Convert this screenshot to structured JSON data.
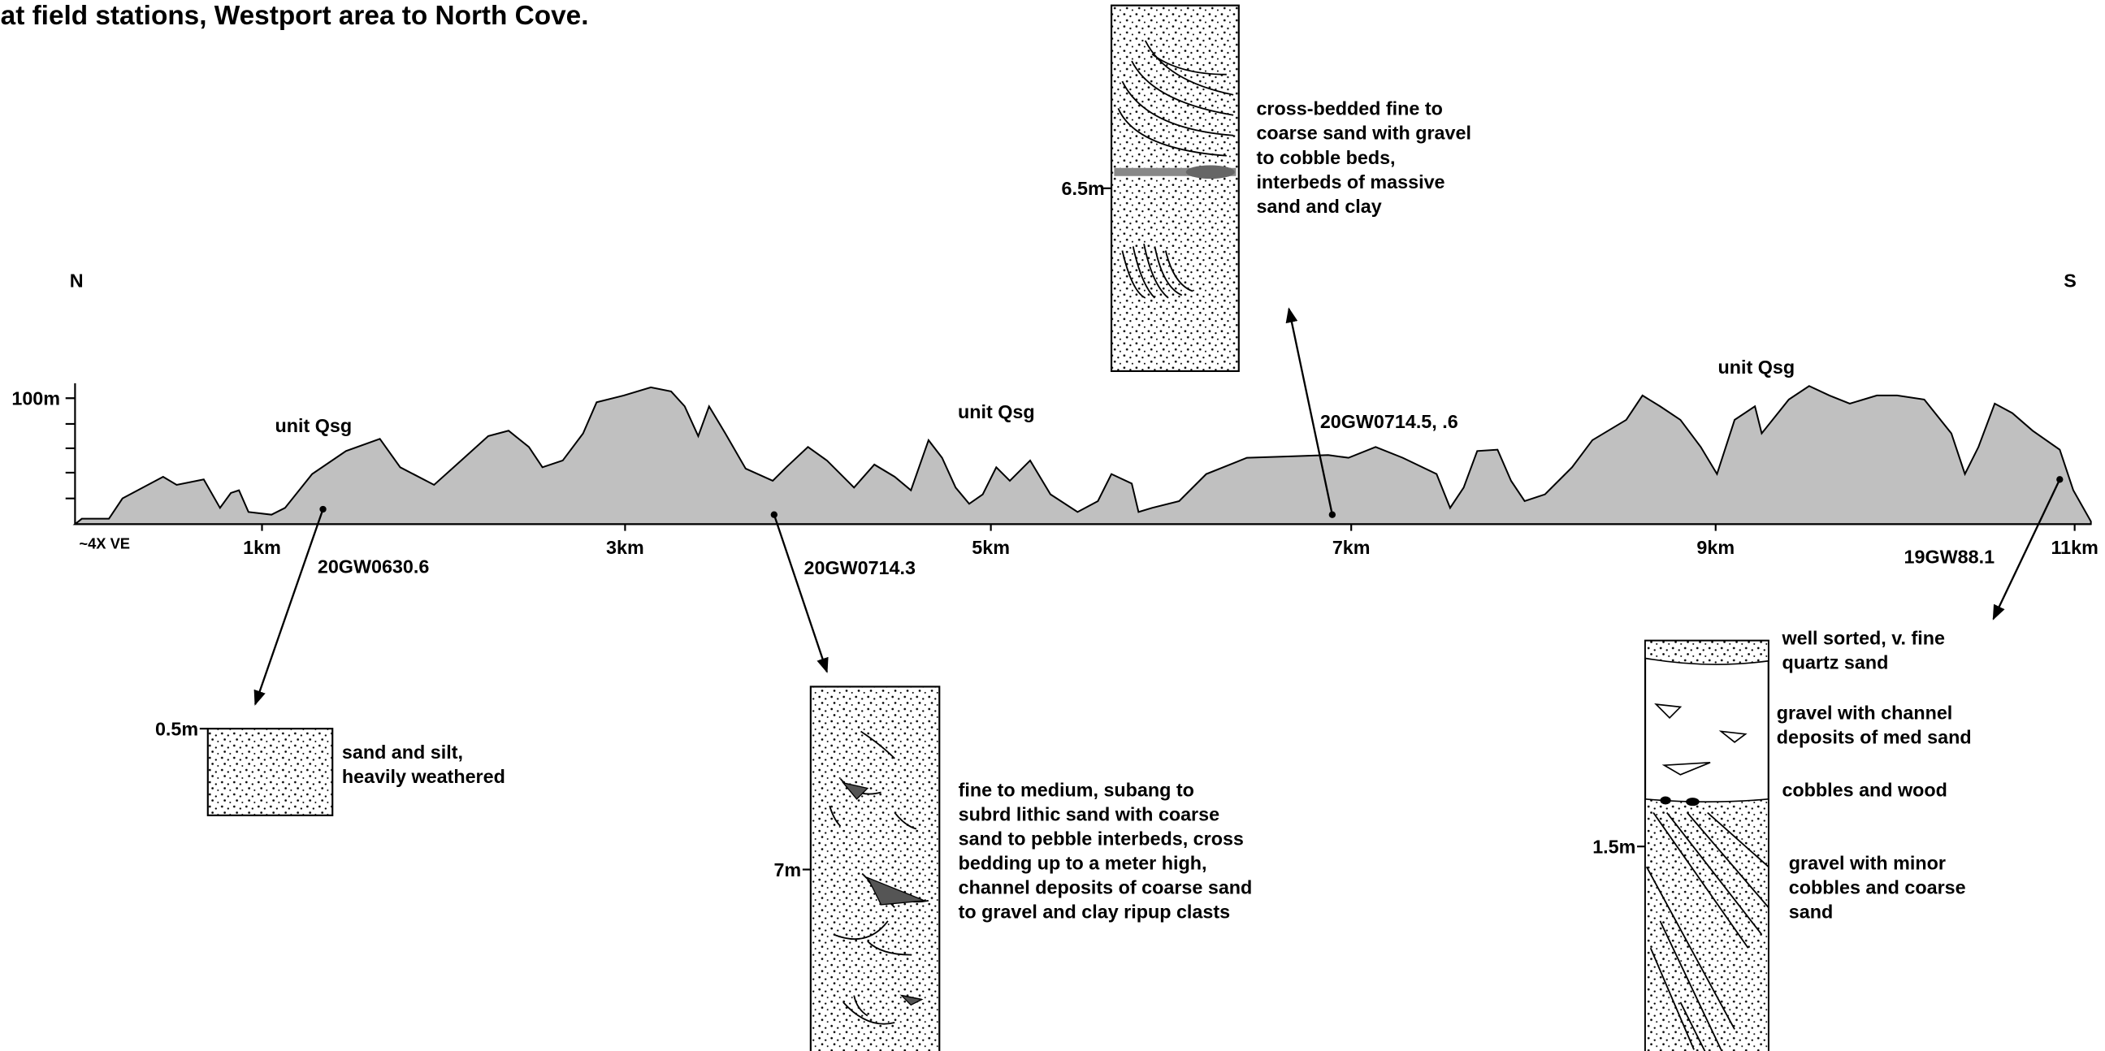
{
  "header": {
    "title": "at field stations, Westport area to North Cove."
  },
  "section": {
    "north": "N",
    "south": "S",
    "elevation_label": "100m",
    "exaggeration": "~4X VE",
    "distance_labels": [
      "1km",
      "3km",
      "5km",
      "7km",
      "9km",
      "11km"
    ],
    "unit_labels": [
      "unit Qsg",
      "unit Qsg",
      "unit Qsg"
    ]
  },
  "stations": [
    {
      "id": "20GW0630.6",
      "thickness": "0.5m",
      "description": [
        "sand and silt,",
        "heavily weathered"
      ]
    },
    {
      "id": "20GW0714.3",
      "thickness": "7m",
      "description": [
        "fine to medium, subang to",
        "subrd lithic sand with coarse",
        "sand to pebble interbeds, cross",
        "bedding up to a meter high,",
        "channel deposits of coarse sand",
        "to gravel and clay ripup clasts"
      ]
    },
    {
      "id": "20GW0714.5, .6",
      "thickness": "6.5m",
      "description": [
        "cross-bedded fine to",
        "coarse sand with gravel",
        "to cobble beds,",
        "interbeds of massive",
        "sand and clay"
      ]
    },
    {
      "id": "19GW88.1",
      "thickness": "1.5m",
      "layers": [
        [
          "well sorted, v. fine",
          "quartz sand"
        ],
        [
          "gravel with channel",
          "deposits of med sand"
        ],
        [
          "cobbles and wood"
        ],
        [
          "gravel with minor",
          "cobbles and coarse",
          "sand"
        ]
      ]
    }
  ]
}
